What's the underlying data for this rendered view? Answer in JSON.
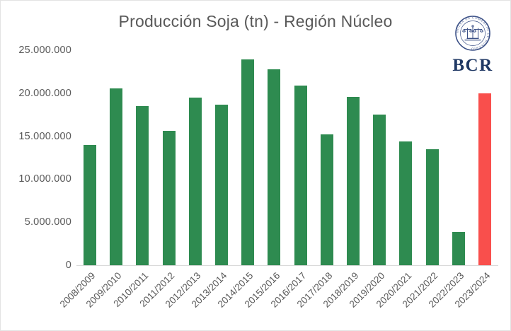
{
  "title": "Producción Soja (tn) - Región Núcleo",
  "logo": {
    "org_abbr": "BCR",
    "seal_text": "BOLSA DE COMERCIO DE ROSARIO"
  },
  "colors": {
    "bar_green": "#2e8b50",
    "bar_red": "#f94f4c",
    "title_text": "#595959",
    "axis_text": "#595959",
    "axis_line": "#d9d9d9",
    "logo_navy": "#1f3864",
    "seal_blue": "#3c5187"
  },
  "chart_data": {
    "type": "bar",
    "title": "Producción Soja (tn) - Región Núcleo",
    "xlabel": "",
    "ylabel": "",
    "categories": [
      "2008/2009",
      "2009/2010",
      "2010/2011",
      "2011/2012",
      "2012/2013",
      "2013/2014",
      "2014/2015",
      "2015/2016",
      "2016/2017",
      "2017/2018",
      "2018/2019",
      "2019/2020",
      "2020/2021",
      "2021/2022",
      "2022/2023",
      "2023/2024"
    ],
    "values": [
      14000000,
      20600000,
      18500000,
      15600000,
      19450000,
      18650000,
      23900000,
      22800000,
      20850000,
      15200000,
      19600000,
      17500000,
      14400000,
      13450000,
      3850000,
      20000000
    ],
    "highlight_index": 15,
    "highlight_category": "2023/2024",
    "ylim": [
      0,
      25000000
    ],
    "yticks": [
      0,
      5000000,
      10000000,
      15000000,
      20000000,
      25000000
    ],
    "ytick_labels": [
      "0",
      "5.000.000",
      "10.000.000",
      "15.000.000",
      "20.000.000",
      "25.000.000"
    ],
    "grid": false,
    "legend": false,
    "bar_colors": {
      "default": "#2e8b50",
      "highlight": "#f94f4c"
    }
  }
}
